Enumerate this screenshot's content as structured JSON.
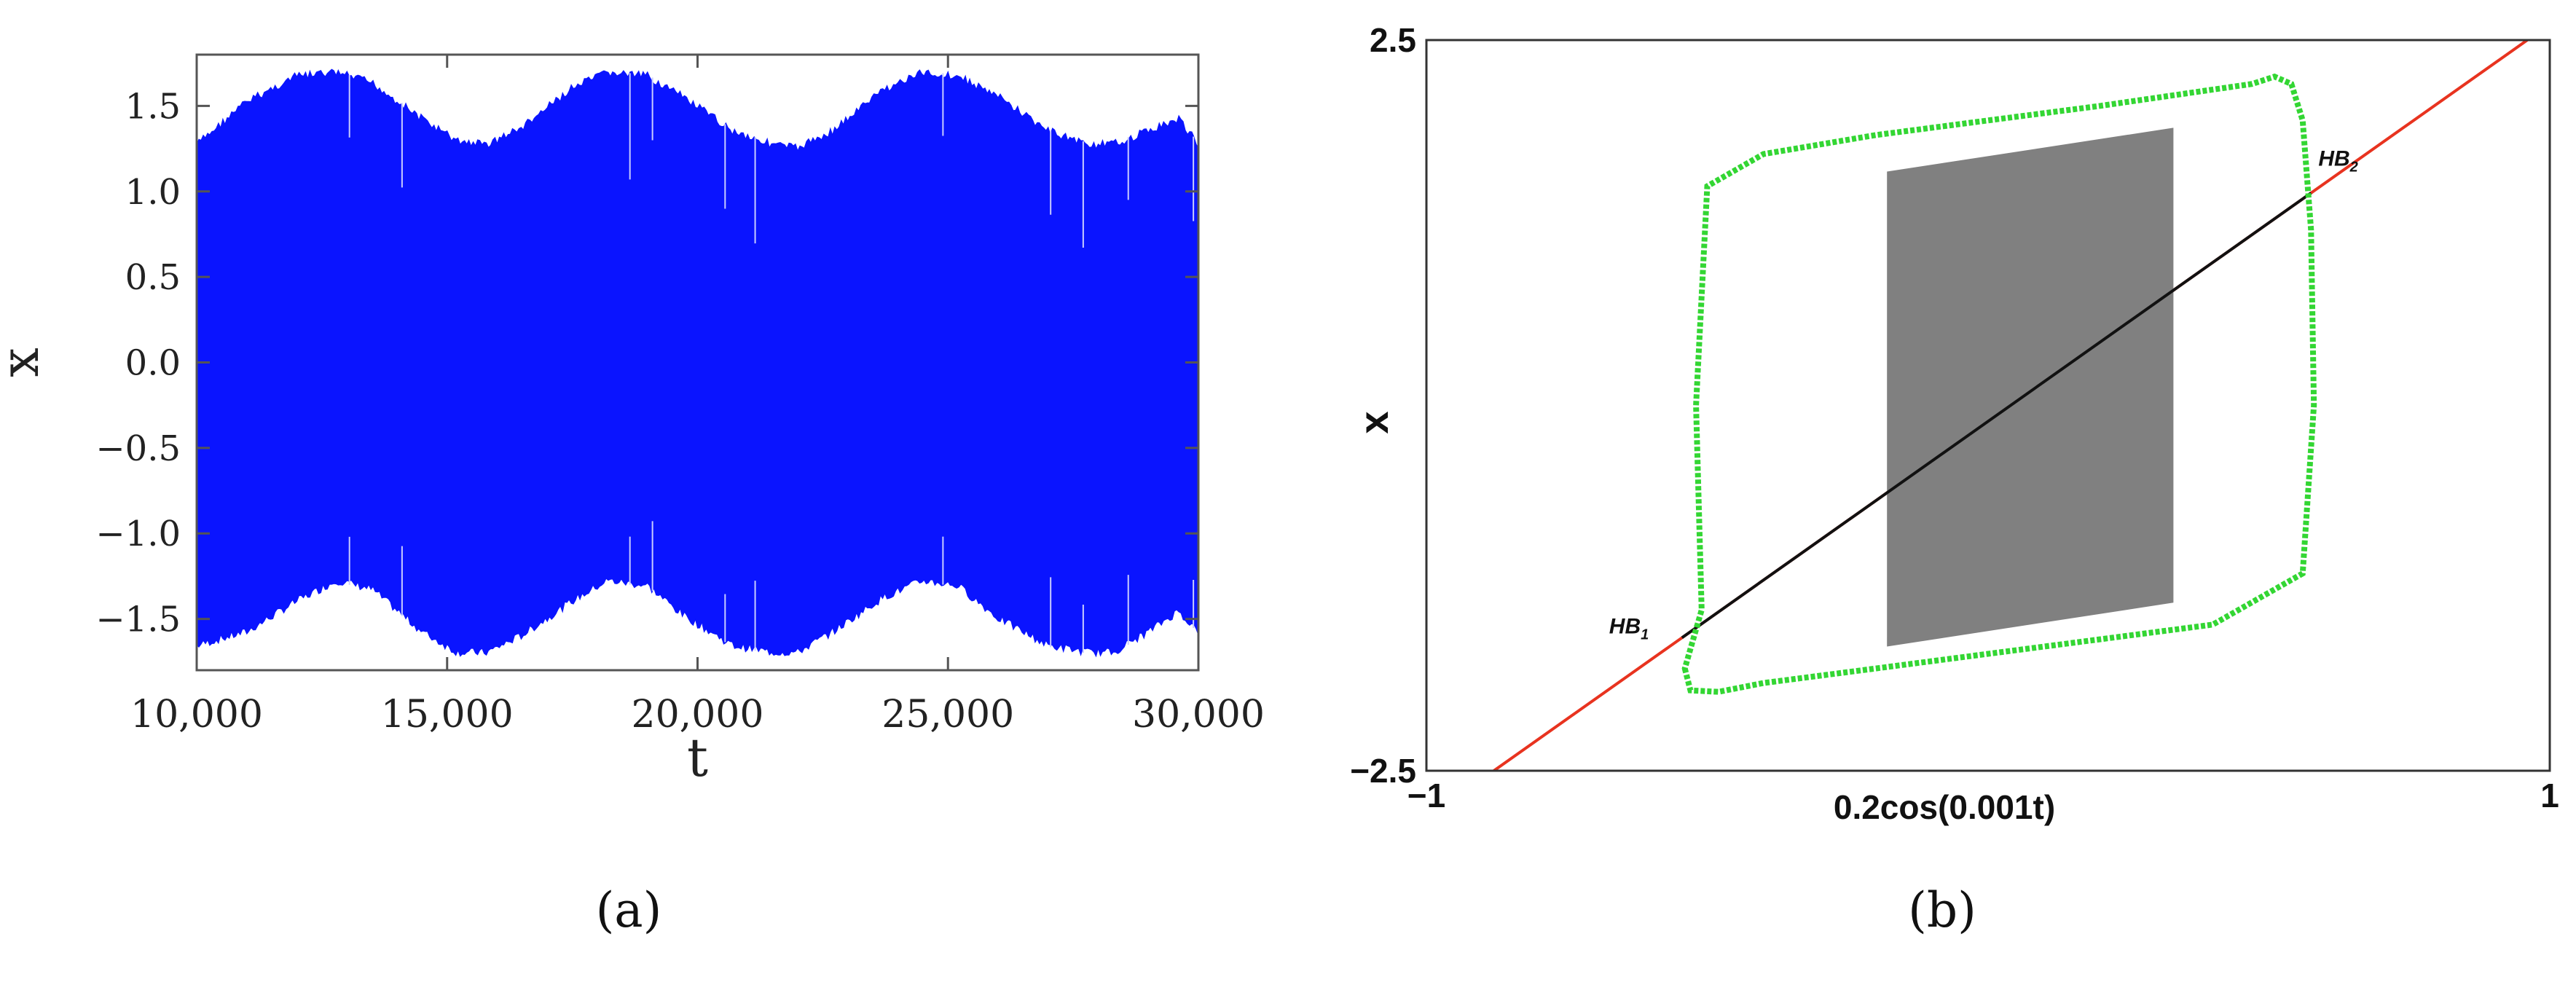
{
  "chart_data": [
    {
      "panel": "a",
      "panel_label": "(a)",
      "type": "line",
      "xlabel": "t",
      "ylabel": "x",
      "xlim": [
        10000,
        30000
      ],
      "ylim": [
        -1.8,
        1.8
      ],
      "xticks": [
        "10,000",
        "15,000",
        "20,000",
        "25,000",
        "30,000"
      ],
      "xtick_values": [
        10000,
        15000,
        20000,
        25000,
        30000
      ],
      "yticks": [
        "1.5",
        "1.0",
        "0.5",
        "0.0",
        "−0.5",
        "−1.0",
        "−1.5"
      ],
      "ytick_values": [
        1.5,
        1.0,
        0.5,
        0.0,
        -0.5,
        -1.0,
        -1.5
      ],
      "series": [
        {
          "color": "#0a14ff",
          "x": [
            10000,
            11000,
            12000,
            12800,
            13500,
            14500,
            15200,
            15800,
            16500,
            17500,
            18200,
            19000,
            19700,
            20700,
            21500,
            22000,
            22700,
            23700,
            24500,
            25200,
            26000,
            27000,
            27800,
            28300,
            29000,
            29600,
            30000
          ],
          "upper": [
            1.3,
            1.55,
            1.7,
            1.72,
            1.66,
            1.45,
            1.32,
            1.3,
            1.4,
            1.63,
            1.72,
            1.7,
            1.58,
            1.38,
            1.3,
            1.28,
            1.38,
            1.62,
            1.72,
            1.7,
            1.58,
            1.38,
            1.3,
            1.3,
            1.38,
            1.45,
            1.3
          ],
          "lower": [
            -1.68,
            -1.6,
            -1.42,
            -1.3,
            -1.35,
            -1.6,
            -1.72,
            -1.72,
            -1.62,
            -1.42,
            -1.3,
            -1.33,
            -1.5,
            -1.68,
            -1.72,
            -1.72,
            -1.6,
            -1.4,
            -1.3,
            -1.33,
            -1.52,
            -1.68,
            -1.72,
            -1.72,
            -1.6,
            -1.48,
            -1.6
          ]
        }
      ],
      "grid": false
    },
    {
      "panel": "b",
      "panel_label": "(b)",
      "type": "line",
      "xlabel": "0.2cos(0.001t)",
      "ylabel": "x",
      "xlim": [
        -1,
        1
      ],
      "ylim": [
        -2.5,
        2.5
      ],
      "xticks": [
        "−1",
        "1"
      ],
      "xtick_values": [
        -1,
        1
      ],
      "yticks": [
        "2.5",
        "−2.5"
      ],
      "ytick_values": [
        2.5,
        -2.5
      ],
      "annotations": [
        {
          "label": "HB",
          "sub": "1",
          "x": -0.545,
          "y": -1.68
        },
        {
          "label": "HB",
          "sub": "2",
          "x": 0.575,
          "y": 1.85
        }
      ],
      "equilibrium_line": {
        "x": [
          -0.88,
          0.96
        ],
        "y": [
          -2.5,
          2.5
        ],
        "stable_x": [
          -0.545,
          0.575
        ],
        "unstable_color": "#e8331f",
        "stable_color": "#111111"
      },
      "cycle_loop": {
        "color": "#33d633",
        "x": [
          -0.54,
          -0.53,
          -0.48,
          -0.4,
          -0.2,
          0.0,
          0.2,
          0.4,
          0.56,
          0.58,
          0.575,
          0.56,
          0.54,
          0.51,
          0.47,
          0.38,
          0.2,
          0.0,
          -0.2,
          -0.4,
          -0.5,
          -0.52,
          -0.51,
          -0.54
        ],
        "y": [
          -1.8,
          -1.95,
          -1.96,
          -1.9,
          -1.8,
          -1.7,
          -1.6,
          -1.5,
          -1.15,
          0.0,
          1.2,
          1.95,
          2.2,
          2.25,
          2.2,
          2.15,
          2.05,
          1.95,
          1.85,
          1.72,
          1.5,
          0.0,
          -1.4,
          -1.8
        ]
      },
      "band": {
        "color": "#808080",
        "x": [
          -0.18,
          0.33
        ],
        "y_upper_left": 1.6,
        "y_upper_right": 1.9,
        "y_lower_left": -1.65,
        "y_lower_right": -1.35
      },
      "grid": false
    }
  ]
}
